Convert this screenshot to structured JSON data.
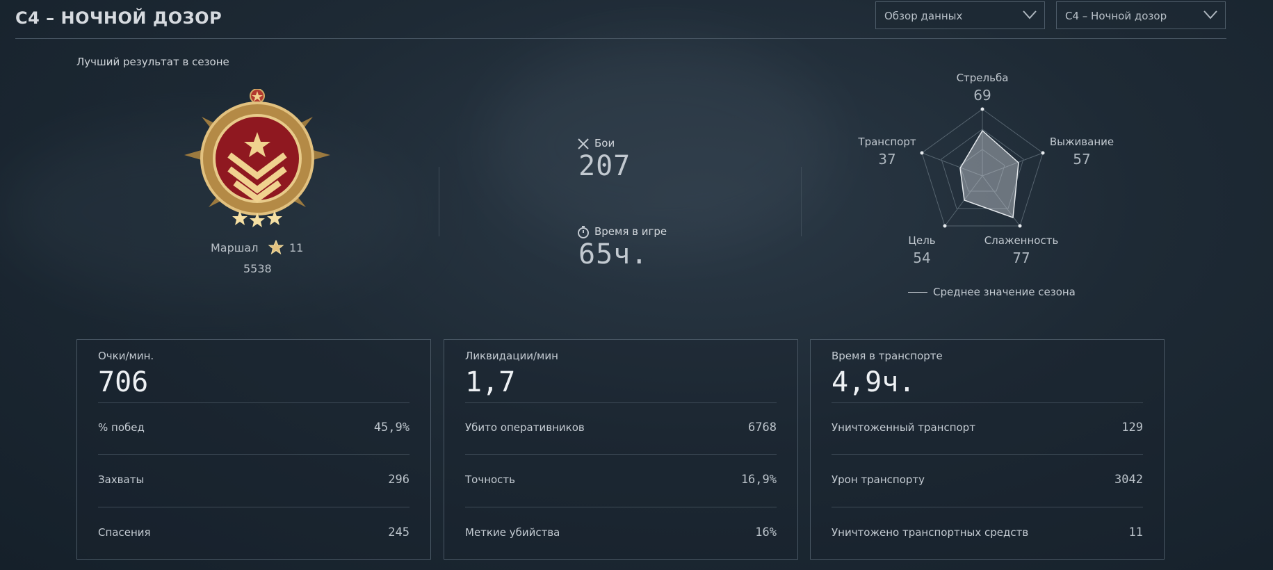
{
  "header": {
    "title": "C4 – НОЧНОЙ ДОЗОР",
    "dropdown_view": "Обзор данных",
    "dropdown_season": "С4 – Ночной дозор"
  },
  "best": {
    "label": "Лучший результат в сезоне",
    "rank_name": "Маршал",
    "rank_level": "11",
    "rank_score": "5538"
  },
  "summary": {
    "battles_label": "Бои",
    "battles_value": "207",
    "time_label": "Время в игре",
    "time_value": "65ч."
  },
  "radar": {
    "axes": [
      {
        "label": "Стрельба",
        "value": "69"
      },
      {
        "label": "Выживание",
        "value": "57"
      },
      {
        "label": "Слаженность",
        "value": "77"
      },
      {
        "label": "Цель",
        "value": "54"
      },
      {
        "label": "Транспорт",
        "value": "37"
      }
    ],
    "legend": "Среднее значение сезона"
  },
  "cards": [
    {
      "title": "Очки/мин.",
      "big": "706",
      "rows": [
        {
          "label": "% побед",
          "value": "45,9%"
        },
        {
          "label": "Захваты",
          "value": "296"
        },
        {
          "label": "Спасения",
          "value": "245"
        }
      ]
    },
    {
      "title": "Ликвидации/мин",
      "big": "1,7",
      "rows": [
        {
          "label": "Убито оперативников",
          "value": "6768"
        },
        {
          "label": "Точность",
          "value": "16,9%"
        },
        {
          "label": "Меткие убийства",
          "value": "16%"
        }
      ]
    },
    {
      "title": "Время в транспорте",
      "big": "4,9ч.",
      "rows": [
        {
          "label": "Уничтоженный транспорт",
          "value": "129"
        },
        {
          "label": "Урон транспорту",
          "value": "3042"
        },
        {
          "label": "Уничтожено транспортных средств",
          "value": "11"
        }
      ]
    }
  ],
  "colors": {
    "background": "#1e2a35",
    "accent_gold": "#c9a45c",
    "medal_red": "#9b1b22"
  },
  "icons": {
    "battles": "crossed-swords-icon",
    "time": "stopwatch-icon",
    "rank_star": "star-icon",
    "dropdown": "chevron-down-icon"
  }
}
